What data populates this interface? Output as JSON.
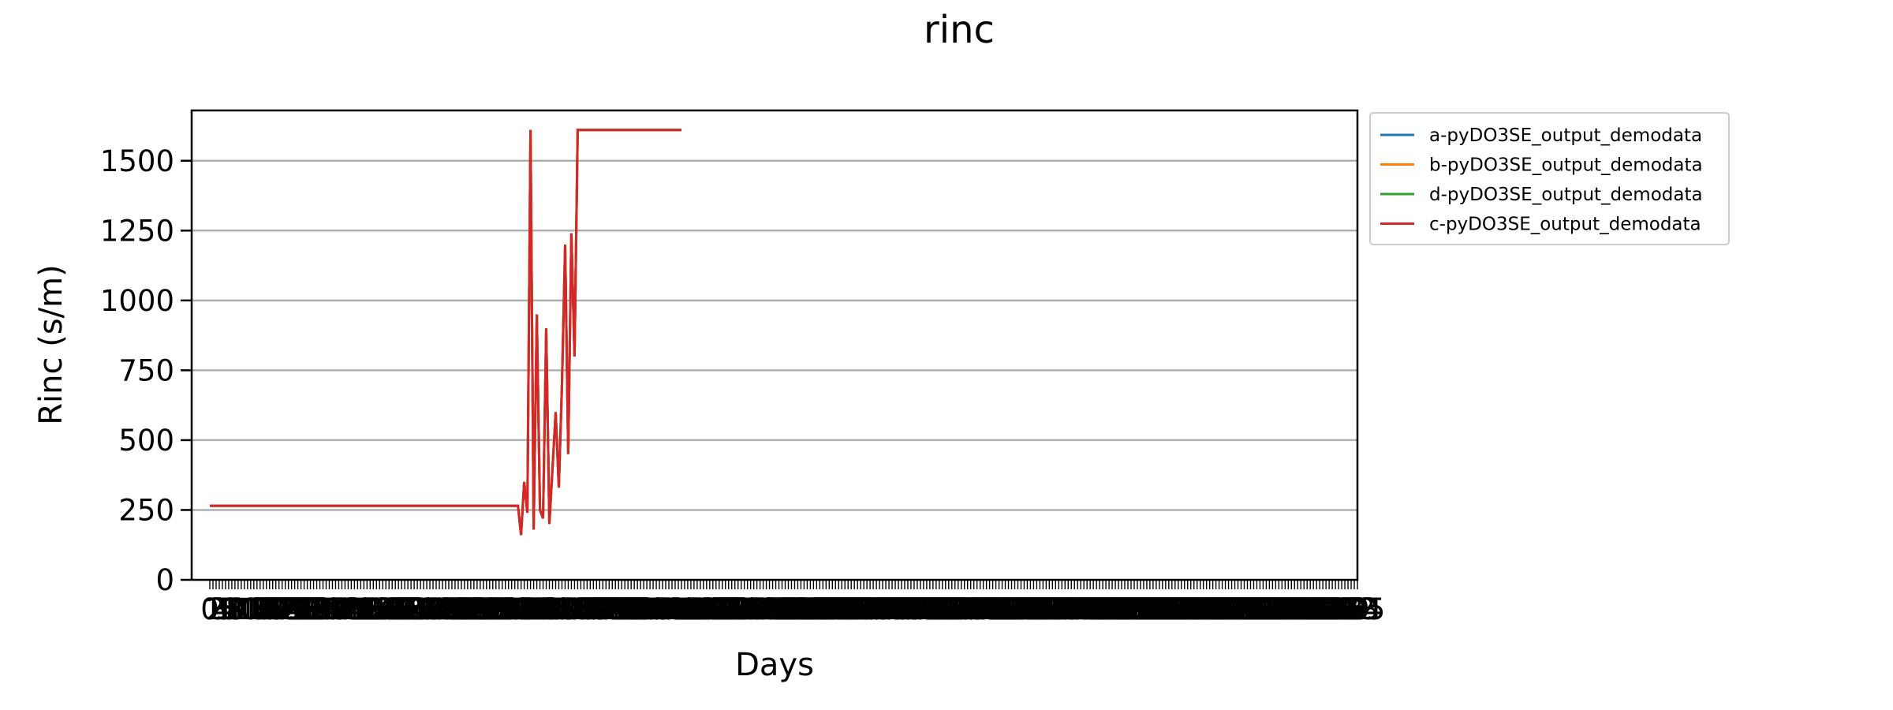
{
  "chart_data": {
    "type": "line",
    "title": "rinc",
    "xlabel": "Days",
    "ylabel": "Rinc (s/m)",
    "ylim": [
      0,
      1680
    ],
    "yticks": [
      0,
      250,
      500,
      750,
      1000,
      1250,
      1500
    ],
    "xlim": [
      0,
      365
    ],
    "grid": "y-major",
    "legend_position": "outside-right",
    "series": [
      {
        "name": "a-pyDO3SE_output_demodata",
        "color": "#1f77b4",
        "x": [
          0,
          97,
          98,
          99,
          100,
          101,
          102,
          103,
          104,
          105,
          106,
          107,
          108,
          109,
          110,
          111,
          112,
          113,
          114,
          115,
          116,
          117,
          118,
          119,
          120,
          121,
          122,
          123,
          124,
          125,
          126,
          127,
          128,
          129,
          130,
          131,
          150
        ],
        "y": [
          265,
          265,
          265,
          160,
          350,
          240,
          1610,
          180,
          950,
          250,
          220,
          900,
          200,
          400,
          600,
          330,
          700,
          1200,
          450,
          1240,
          800,
          1610,
          1610,
          1610,
          1610,
          1610,
          1610,
          1610,
          1610,
          1610,
          1610,
          1610,
          1610,
          1610,
          1610,
          1610,
          1610
        ]
      },
      {
        "name": "b-pyDO3SE_output_demodata",
        "color": "#ff7f0e",
        "x": [
          0,
          97,
          98,
          99,
          100,
          101,
          102,
          103,
          104,
          105,
          106,
          107,
          108,
          109,
          110,
          111,
          112,
          113,
          114,
          115,
          116,
          117,
          150
        ],
        "y": [
          265,
          265,
          265,
          160,
          350,
          240,
          1610,
          180,
          950,
          250,
          220,
          900,
          200,
          400,
          600,
          330,
          700,
          1200,
          450,
          1240,
          800,
          1610,
          1610
        ]
      },
      {
        "name": "d-pyDO3SE_output_demodata",
        "color": "#2ca02c",
        "x": [
          0,
          97,
          98,
          99,
          100,
          101,
          102,
          103,
          104,
          105,
          106,
          107,
          108,
          109,
          110,
          111,
          112,
          113,
          114,
          115,
          116,
          117,
          150
        ],
        "y": [
          265,
          265,
          265,
          160,
          350,
          240,
          1610,
          180,
          950,
          250,
          220,
          900,
          200,
          400,
          600,
          330,
          700,
          1200,
          450,
          1240,
          800,
          1610,
          1610
        ]
      },
      {
        "name": "c-pyDO3SE_output_demodata",
        "color": "#d62728",
        "x": [
          0,
          97,
          98,
          99,
          100,
          101,
          102,
          103,
          104,
          105,
          106,
          107,
          108,
          109,
          110,
          111,
          112,
          113,
          114,
          115,
          116,
          117,
          150
        ],
        "y": [
          265,
          265,
          265,
          160,
          350,
          240,
          1610,
          180,
          950,
          250,
          220,
          900,
          200,
          400,
          600,
          330,
          700,
          1200,
          450,
          1240,
          800,
          1610,
          1610
        ]
      }
    ]
  }
}
